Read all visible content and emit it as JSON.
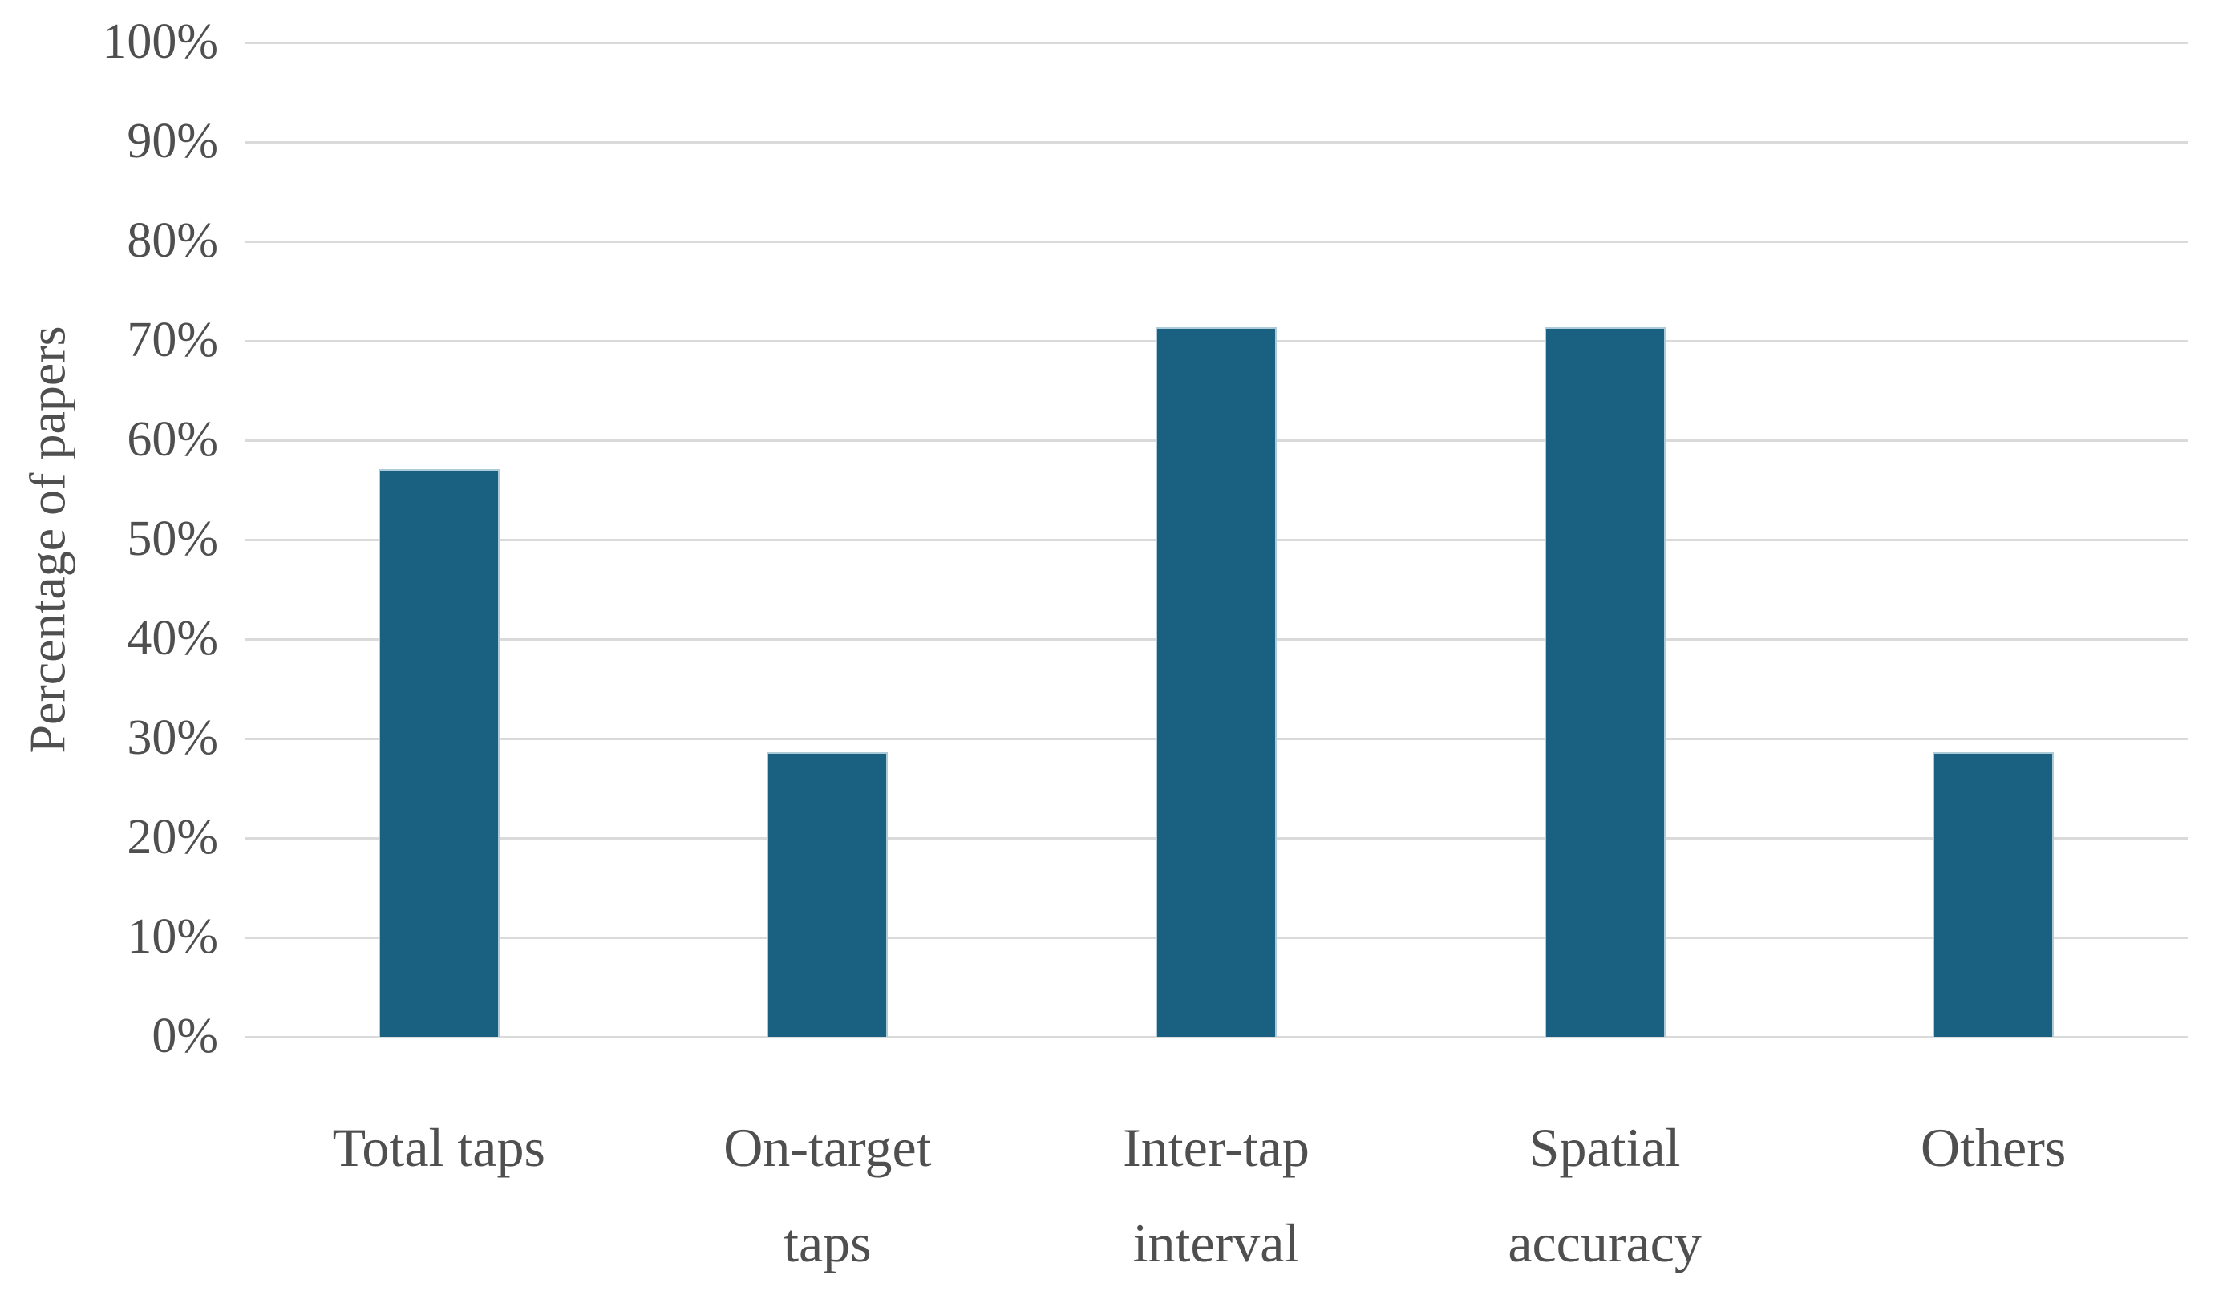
{
  "chart_data": {
    "type": "bar",
    "title": "",
    "xlabel": "",
    "ylabel": "Percentage of papers",
    "categories": [
      "Total taps",
      "On-target\ntaps",
      "Inter-tap\ninterval",
      "Spatial\naccuracy",
      "Others"
    ],
    "values": [
      57.1,
      28.6,
      71.4,
      71.4,
      28.6
    ],
    "ylim": [
      0,
      100
    ],
    "ytick_step": 10,
    "yticks": [
      "0%",
      "10%",
      "20%",
      "30%",
      "40%",
      "50%",
      "60%",
      "70%",
      "80%",
      "90%",
      "100%"
    ],
    "grid": true,
    "legend": false,
    "bar_color": "#1A6081",
    "bar_border_color": "#AECBDA",
    "gridline_color": "#DADADA",
    "text_color": "#4F4F4F"
  }
}
